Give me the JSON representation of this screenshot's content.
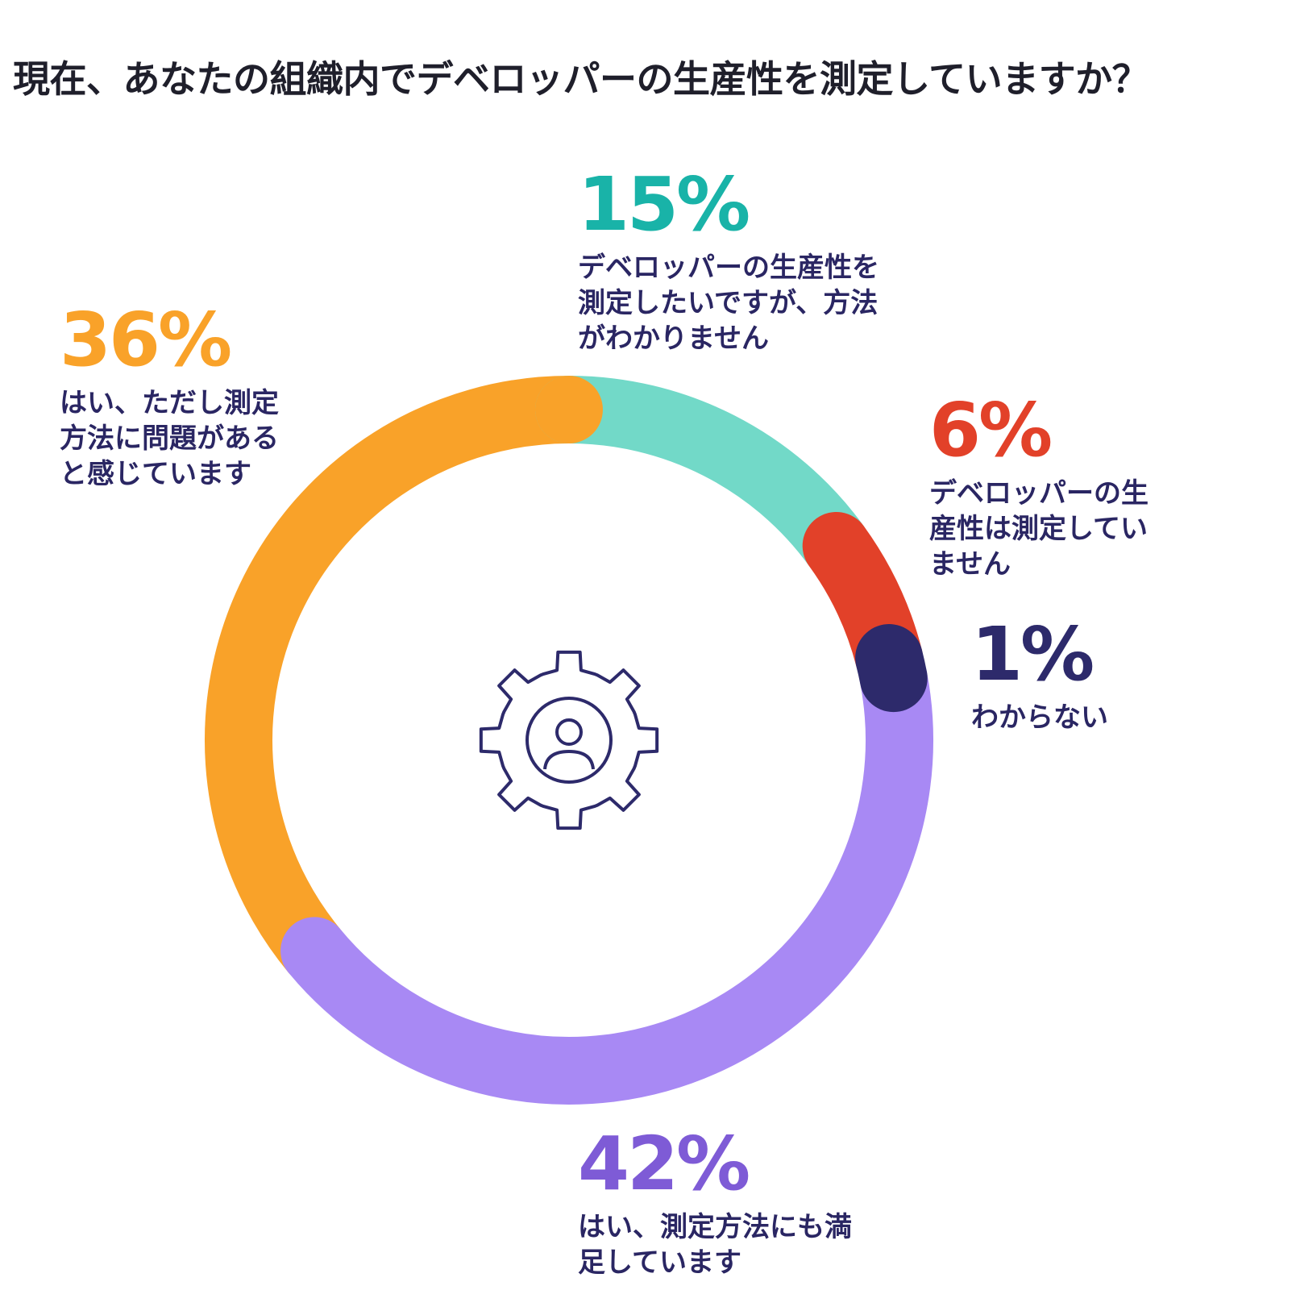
{
  "chart_data": {
    "type": "pie",
    "title": "現在、あなたの組織内でデベロッパーの生産性を測定していますか？",
    "slices": [
      {
        "value": 15,
        "percent_label": "15%",
        "label": "デベロッパーの生産性を\n測定したいですが、方法\nがわかりません",
        "color": "#72d9c8",
        "text_color": "#19b3a8"
      },
      {
        "value": 6,
        "percent_label": "6%",
        "label": "デベロッパーの生\n産性は測定してい\nません",
        "color": "#e24129",
        "text_color": "#e24129"
      },
      {
        "value": 1,
        "percent_label": "1%",
        "label": "わからない",
        "color": "#2d2a6b",
        "text_color": "#2d2a6b"
      },
      {
        "value": 42,
        "percent_label": "42%",
        "label": "はい、測定方法にも満\n足しています",
        "color": "#a889f4",
        "text_color": "#7e5bd6"
      },
      {
        "value": 36,
        "percent_label": "36%",
        "label": "はい、ただし測定\n方法に問題がある\nと感じています",
        "color": "#f9a229",
        "text_color": "#f9a229"
      }
    ],
    "center_icon": "gear-person-icon"
  }
}
